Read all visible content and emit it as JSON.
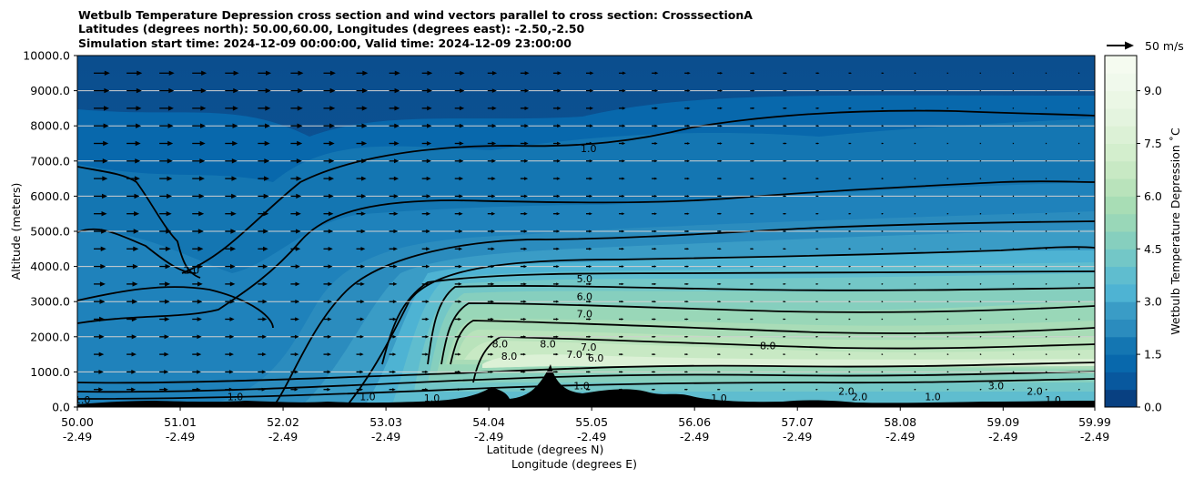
{
  "title_lines": [
    "Wetbulb Temperature Depression cross section and wind vectors parallel to cross section: CrosssectionA",
    "Latitudes (degrees north): 50.00,60.00, Longitudes (degrees east): -2.50,-2.50",
    "Simulation start time: 2024-12-09 00:00:00, Valid time: 2024-12-09 23:00:00"
  ],
  "quiver_key": "50 m/s",
  "chart_data": {
    "type": "heatmap",
    "title": "Wetbulb Temperature Depression cross section and wind vectors parallel to cross section: CrosssectionA",
    "ylabel": "Altitude (meters)",
    "xlabel": "Latitude (degrees N)",
    "xlabel2": "Longitude (degrees E)",
    "ylim": [
      0,
      10000
    ],
    "xlim": [
      50.0,
      59.99
    ],
    "grid": "horizontal",
    "x_ticks": [
      {
        "lat": "50.00",
        "lon": "-2.49",
        "v": 50.0
      },
      {
        "lat": "51.01",
        "lon": "-2.49",
        "v": 51.01
      },
      {
        "lat": "52.02",
        "lon": "-2.49",
        "v": 52.02
      },
      {
        "lat": "53.03",
        "lon": "-2.49",
        "v": 53.03
      },
      {
        "lat": "54.04",
        "lon": "-2.49",
        "v": 54.04
      },
      {
        "lat": "55.05",
        "lon": "-2.49",
        "v": 55.05
      },
      {
        "lat": "56.06",
        "lon": "-2.49",
        "v": 56.06
      },
      {
        "lat": "57.07",
        "lon": "-2.49",
        "v": 57.07
      },
      {
        "lat": "58.08",
        "lon": "-2.49",
        "v": 58.08
      },
      {
        "lat": "59.09",
        "lon": "-2.49",
        "v": 59.09
      },
      {
        "lat": "59.99",
        "lon": "-2.49",
        "v": 59.99
      }
    ],
    "y_ticks": [
      {
        "label": "0.0",
        "v": 0
      },
      {
        "label": "1000.0",
        "v": 1000
      },
      {
        "label": "2000.0",
        "v": 2000
      },
      {
        "label": "3000.0",
        "v": 3000
      },
      {
        "label": "4000.0",
        "v": 4000
      },
      {
        "label": "5000.0",
        "v": 5000
      },
      {
        "label": "6000.0",
        "v": 6000
      },
      {
        "label": "7000.0",
        "v": 7000
      },
      {
        "label": "8000.0",
        "v": 8000
      },
      {
        "label": "9000.0",
        "v": 9000
      },
      {
        "label": "10000.0",
        "v": 10000
      }
    ],
    "colorbar": {
      "label": "Wetbulb Temperature Depression ˚C",
      "range": [
        0,
        10
      ],
      "ticks": [
        "0.0",
        "1.5",
        "3.0",
        "4.5",
        "6.0",
        "7.5",
        "9.0"
      ],
      "tick_values": [
        0,
        1.5,
        3.0,
        4.5,
        6.0,
        7.5,
        9.0
      ],
      "colormap": "GnBu_r"
    },
    "contour_labels": [
      {
        "text": "1.0",
        "x": 55.02,
        "y": 7250
      },
      {
        "text": "2.0",
        "x": 51.12,
        "y": 3800
      },
      {
        "text": "5.0",
        "x": 54.98,
        "y": 3550
      },
      {
        "text": "6.0",
        "x": 54.98,
        "y": 3050
      },
      {
        "text": "7.0",
        "x": 54.98,
        "y": 2550
      },
      {
        "text": "8.0",
        "x": 54.15,
        "y": 1700
      },
      {
        "text": "8.0",
        "x": 54.24,
        "y": 1350
      },
      {
        "text": "8.0",
        "x": 54.62,
        "y": 1700
      },
      {
        "text": "7.0",
        "x": 55.02,
        "y": 1600
      },
      {
        "text": "7.0",
        "x": 54.88,
        "y": 1400
      },
      {
        "text": "6.0",
        "x": 55.09,
        "y": 1300
      },
      {
        "text": "1.0",
        "x": 54.95,
        "y": 500
      },
      {
        "text": "8.0",
        "x": 56.78,
        "y": 1650
      },
      {
        "text": "1.0",
        "x": 56.3,
        "y": 150
      },
      {
        "text": "1.0",
        "x": 51.55,
        "y": 200
      },
      {
        "text": "1.0",
        "x": 52.85,
        "y": 200
      },
      {
        "text": "1.0",
        "x": 53.48,
        "y": 150
      },
      {
        "text": "2.0",
        "x": 57.55,
        "y": 350
      },
      {
        "text": "2.0",
        "x": 57.68,
        "y": 200
      },
      {
        "text": "1.0",
        "x": 58.4,
        "y": 200
      },
      {
        "text": "3.0",
        "x": 59.02,
        "y": 500
      },
      {
        "text": "2.0",
        "x": 59.4,
        "y": 350
      },
      {
        "text": "1.0",
        "x": 59.58,
        "y": 100
      },
      {
        "text": "1.0",
        "x": 50.05,
        "y": 100
      }
    ],
    "wind": {
      "description": "wind vectors parallel to cross section; strong southerly-to-northerly flow (~30-40 m/s) at upper levels in the south, weakening northward"
    }
  }
}
